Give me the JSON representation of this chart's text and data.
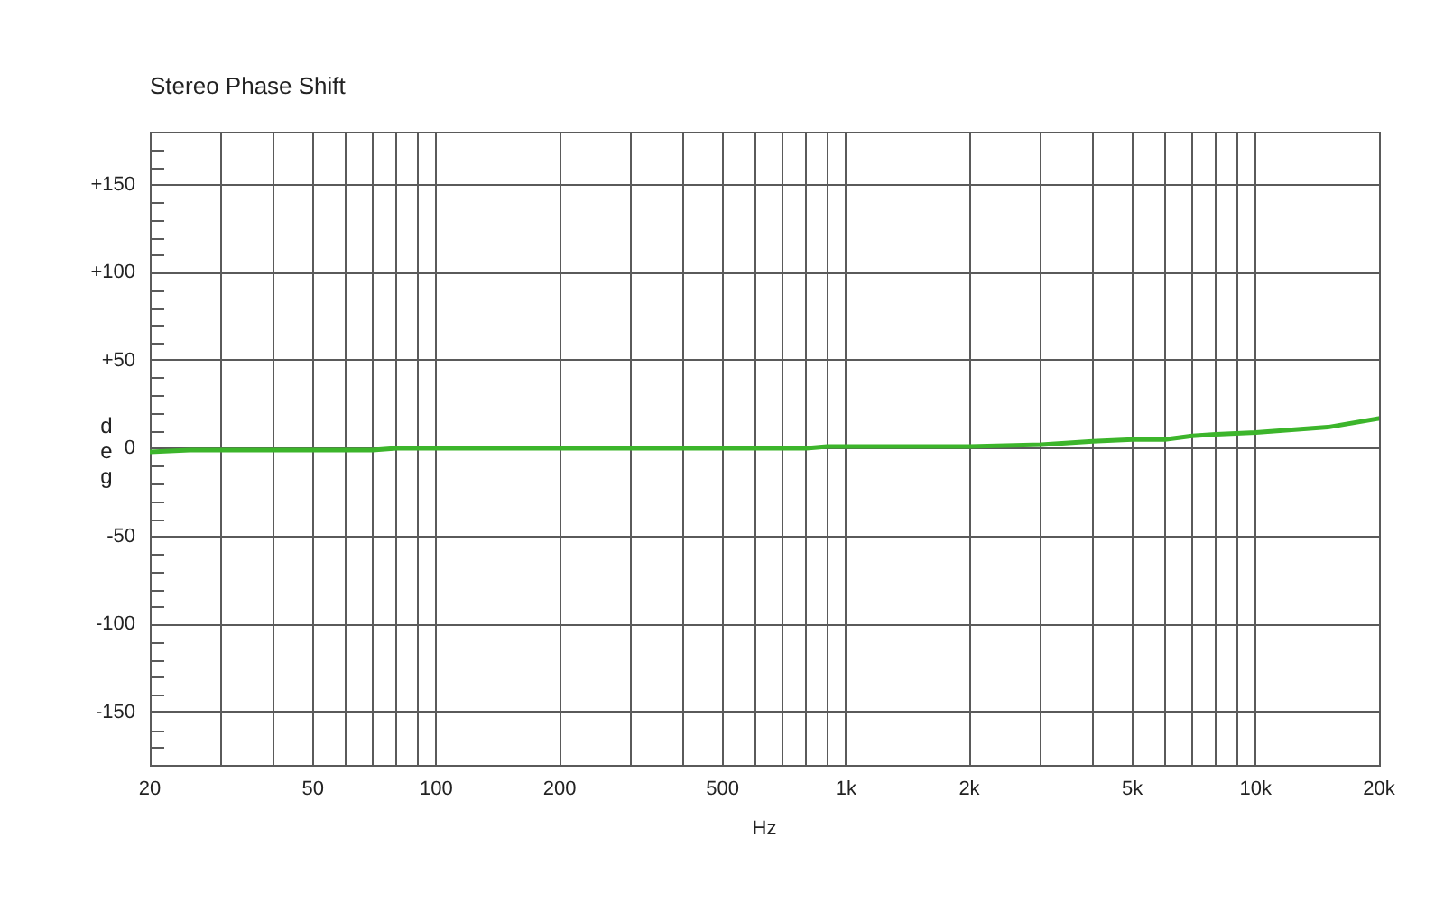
{
  "chart_data": {
    "type": "line",
    "title": "Stereo Phase Shift",
    "xlabel": "Hz",
    "ylabel": "deg",
    "log": "x",
    "grid": true,
    "legend": false,
    "xlim": [
      20,
      20000
    ],
    "ylim": [
      -180,
      180
    ],
    "xticks": [
      20,
      {
        "value": 30,
        "label": null
      },
      {
        "value": 40,
        "label": null
      },
      50,
      {
        "value": 60,
        "label": null
      },
      {
        "value": 70,
        "label": null
      },
      {
        "value": 80,
        "label": null
      },
      {
        "value": 90,
        "label": null
      },
      100,
      200,
      {
        "value": 300,
        "label": null
      },
      {
        "value": 400,
        "label": null
      },
      500,
      {
        "value": 600,
        "label": null
      },
      {
        "value": 700,
        "label": null
      },
      {
        "value": 800,
        "label": null
      },
      {
        "value": 900,
        "label": null
      },
      {
        "value": 1000,
        "label": "1k"
      },
      {
        "value": 2000,
        "label": "2k"
      },
      {
        "value": 3000,
        "label": null
      },
      {
        "value": 4000,
        "label": null
      },
      {
        "value": 5000,
        "label": "5k"
      },
      {
        "value": 6000,
        "label": null
      },
      {
        "value": 7000,
        "label": null
      },
      {
        "value": 8000,
        "label": null
      },
      {
        "value": 9000,
        "label": null
      },
      {
        "value": 10000,
        "label": "10k"
      },
      {
        "value": 20000,
        "label": "20k"
      }
    ],
    "yticks": [
      -150,
      {
        "value": -170,
        "label": null
      },
      {
        "value": -160,
        "label": null
      },
      {
        "value": -140,
        "label": null
      },
      {
        "value": -130,
        "label": null
      },
      {
        "value": -120,
        "label": null
      },
      {
        "value": -110,
        "label": null
      },
      -100,
      {
        "value": -90,
        "label": null
      },
      {
        "value": -80,
        "label": null
      },
      {
        "value": -70,
        "label": null
      },
      {
        "value": -60,
        "label": null
      },
      -50,
      {
        "value": -40,
        "label": null
      },
      {
        "value": -30,
        "label": null
      },
      {
        "value": -20,
        "label": null
      },
      {
        "value": -10,
        "label": null
      },
      0,
      {
        "value": 10,
        "label": null
      },
      {
        "value": 20,
        "label": null
      },
      {
        "value": 30,
        "label": null
      },
      {
        "value": 40,
        "label": null
      },
      {
        "value": 50,
        "label": "+50"
      },
      {
        "value": 60,
        "label": null
      },
      {
        "value": 70,
        "label": null
      },
      {
        "value": 80,
        "label": null
      },
      {
        "value": 90,
        "label": null
      },
      {
        "value": 100,
        "label": "+100"
      },
      {
        "value": 110,
        "label": null
      },
      {
        "value": 120,
        "label": null
      },
      {
        "value": 130,
        "label": null
      },
      {
        "value": 140,
        "label": null
      },
      {
        "value": 150,
        "label": "+150"
      },
      {
        "value": 160,
        "label": null
      },
      {
        "value": 170,
        "label": null
      }
    ],
    "x": [
      20,
      25,
      30,
      50,
      70,
      80,
      100,
      200,
      500,
      800,
      900,
      1000,
      2000,
      3000,
      4000,
      5000,
      6000,
      7000,
      8000,
      10000,
      15000,
      20000
    ],
    "series": [
      {
        "color": "#3cb52b",
        "values": [
          -2,
          -1,
          -1,
          -1,
          -1,
          0,
          0,
          0,
          0,
          0,
          1,
          1,
          1,
          2,
          4,
          5,
          5,
          7,
          8,
          9,
          12,
          17
        ]
      }
    ]
  }
}
